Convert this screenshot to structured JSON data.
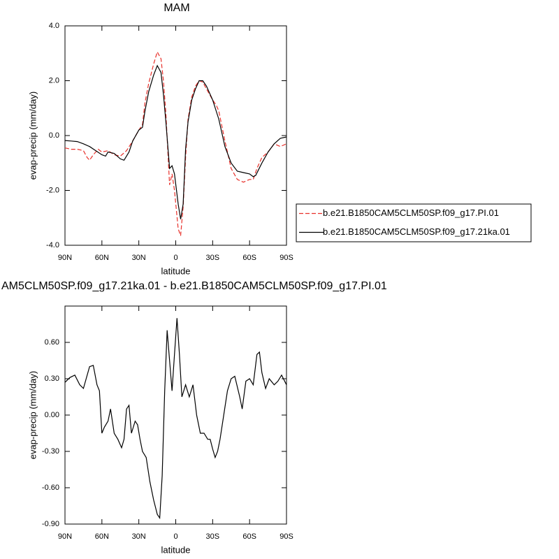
{
  "chart_data": [
    {
      "type": "line",
      "title": "MAM",
      "x_label": "latitude",
      "y_label": "evap-precip (mm/day)",
      "xlim": [
        90,
        -90
      ],
      "ylim": [
        -4.0,
        4.0
      ],
      "xticks": [
        {
          "value": 90,
          "label": "90N"
        },
        {
          "value": 60,
          "label": "60N"
        },
        {
          "value": 30,
          "label": "30N"
        },
        0,
        {
          "value": -30,
          "label": "30S"
        },
        {
          "value": -60,
          "label": "60S"
        },
        {
          "value": -90,
          "label": "90S"
        }
      ],
      "yticks": [
        {
          "value": 4,
          "label": "4.0"
        },
        {
          "value": 2,
          "label": "2.0"
        },
        {
          "value": 0,
          "label": "0.0"
        },
        {
          "value": -2,
          "label": "-2.0"
        },
        {
          "value": -4,
          "label": "-4.0"
        }
      ],
      "legend": "right",
      "series": [
        {
          "name": "b.e21.B1850CAM5CLM50SP.f09_g17.PI.01",
          "color": "#e8302a",
          "dash": true,
          "x": [
            90,
            85,
            80,
            75,
            72,
            70,
            67,
            63,
            60,
            55,
            50,
            45,
            40,
            35,
            30,
            27,
            25,
            22,
            18,
            15,
            12,
            10,
            8,
            5,
            3,
            1,
            -2,
            -4,
            -6,
            -8,
            -10,
            -13,
            -16,
            -19,
            -22,
            -25,
            -30,
            -33,
            -35,
            -40,
            -45,
            -50,
            -55,
            -60,
            -63,
            -66,
            -70,
            -75,
            -80,
            -85,
            -90
          ],
          "values": [
            -0.45,
            -0.5,
            -0.5,
            -0.55,
            -0.8,
            -0.9,
            -0.7,
            -0.5,
            -0.6,
            -0.55,
            -0.7,
            -0.75,
            -0.55,
            -0.2,
            0.2,
            0.4,
            1.2,
            1.9,
            2.6,
            3.05,
            2.8,
            2.0,
            0.8,
            -1.8,
            -1.4,
            -2.0,
            -3.4,
            -3.65,
            -2.6,
            -0.8,
            0.6,
            1.4,
            1.8,
            2.0,
            1.95,
            1.7,
            1.3,
            1.1,
            0.9,
            -0.2,
            -1.2,
            -1.6,
            -1.7,
            -1.6,
            -1.6,
            -1.2,
            -0.8,
            -0.6,
            -0.3,
            -0.4,
            -0.3
          ]
        },
        {
          "name": "b.e21.B1850CAM5CLM50SP.f09_g17.21ka.01",
          "color": "#000000",
          "dash": false,
          "x": [
            90,
            85,
            80,
            75,
            70,
            65,
            60,
            57,
            55,
            50,
            45,
            42,
            38,
            35,
            30,
            27,
            25,
            22,
            18,
            15,
            12,
            10,
            8,
            5,
            3,
            1,
            -2,
            -4,
            -6,
            -8,
            -10,
            -13,
            -16,
            -19,
            -22,
            -25,
            -30,
            -35,
            -40,
            -45,
            -50,
            -55,
            -60,
            -63,
            -65,
            -70,
            -75,
            -80,
            -85,
            -90
          ],
          "values": [
            -0.18,
            -0.2,
            -0.22,
            -0.3,
            -0.4,
            -0.55,
            -0.7,
            -0.75,
            -0.6,
            -0.65,
            -0.85,
            -0.9,
            -0.6,
            -0.2,
            0.2,
            0.3,
            0.9,
            1.6,
            2.2,
            2.55,
            2.3,
            1.5,
            0.5,
            -1.2,
            -1.1,
            -1.4,
            -2.5,
            -3.05,
            -2.5,
            -0.5,
            0.5,
            1.3,
            1.7,
            2.0,
            2.0,
            1.8,
            1.3,
            0.6,
            -0.4,
            -1.0,
            -1.3,
            -1.35,
            -1.4,
            -1.5,
            -1.45,
            -1.0,
            -0.6,
            -0.3,
            -0.1,
            -0.05
          ]
        }
      ]
    },
    {
      "type": "line",
      "title": "AM5CLM50SP.f09_g17.21ka.01 - b.e21.B1850CAM5CLM50SP.f09_g17.PI.01",
      "x_label": "latitude",
      "y_label": "evap-precip (mm/day)",
      "xlim": [
        90,
        -90
      ],
      "ylim": [
        -0.9,
        0.9
      ],
      "xticks": [
        {
          "value": 90,
          "label": "90N"
        },
        {
          "value": 60,
          "label": "60N"
        },
        {
          "value": 30,
          "label": "30N"
        },
        0,
        {
          "value": -30,
          "label": "30S"
        },
        {
          "value": -60,
          "label": "60S"
        },
        {
          "value": -90,
          "label": "90S"
        }
      ],
      "yticks": [
        {
          "value": 0.6,
          "label": "0.60"
        },
        {
          "value": 0.3,
          "label": "0.30"
        },
        {
          "value": 0,
          "label": "0.00"
        },
        {
          "value": -0.3,
          "label": "-0.30"
        },
        {
          "value": -0.6,
          "label": "-0.60"
        },
        {
          "value": -0.9,
          "label": "-0.90"
        }
      ],
      "series": [
        {
          "color": "#000000",
          "dash": false,
          "x": [
            90,
            86,
            82,
            78,
            75,
            70,
            67,
            64,
            62,
            60,
            58,
            55,
            53,
            50,
            47,
            44,
            42,
            40,
            38,
            36,
            33,
            31,
            29,
            27,
            24,
            21,
            18,
            15,
            13,
            11,
            9,
            7,
            5,
            3,
            1,
            -1,
            -3,
            -5,
            -8,
            -11,
            -14,
            -17,
            -20,
            -23,
            -26,
            -28,
            -30,
            -32,
            -34,
            -36,
            -39,
            -42,
            -45,
            -48,
            -52,
            -54,
            -57,
            -60,
            -63,
            -66,
            -68,
            -70,
            -73,
            -76,
            -80,
            -83,
            -86,
            -90
          ],
          "values": [
            0.27,
            0.31,
            0.33,
            0.25,
            0.22,
            0.4,
            0.41,
            0.25,
            0.2,
            -0.15,
            -0.1,
            -0.05,
            0.05,
            -0.15,
            -0.2,
            -0.27,
            -0.2,
            0.05,
            0.08,
            -0.15,
            -0.05,
            -0.08,
            -0.2,
            -0.3,
            -0.35,
            -0.55,
            -0.7,
            -0.82,
            -0.85,
            -0.5,
            0.2,
            0.7,
            0.45,
            0.2,
            0.5,
            0.8,
            0.5,
            0.15,
            0.25,
            0.15,
            0.25,
            0.0,
            -0.15,
            -0.15,
            -0.2,
            -0.2,
            -0.28,
            -0.35,
            -0.3,
            -0.2,
            0.0,
            0.2,
            0.3,
            0.32,
            0.15,
            0.05,
            0.28,
            0.3,
            0.25,
            0.5,
            0.52,
            0.35,
            0.22,
            0.3,
            0.25,
            0.28,
            0.33,
            0.25
          ]
        }
      ]
    }
  ]
}
